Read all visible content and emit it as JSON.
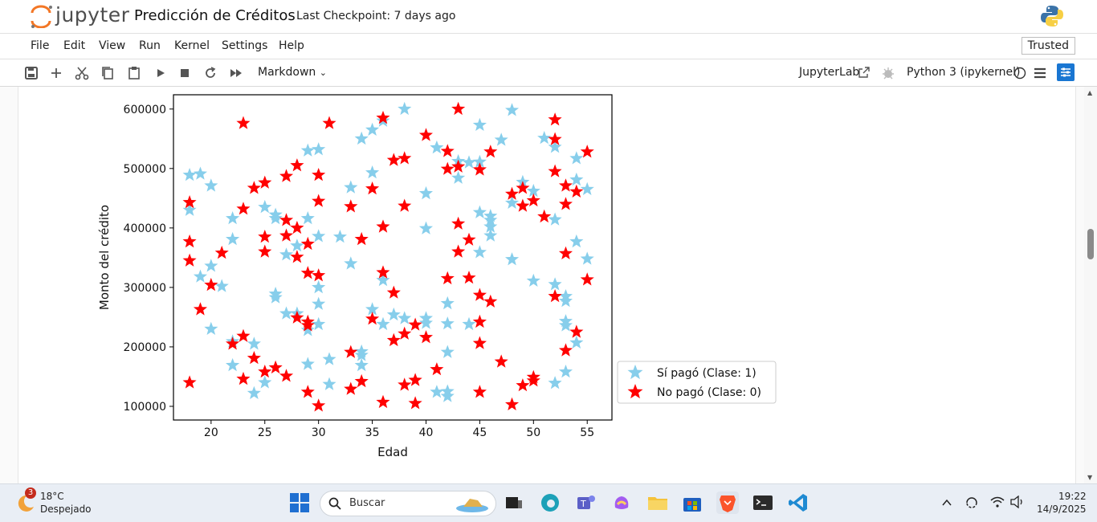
{
  "app": {
    "logo_text": "jupyter",
    "notebook_title": "Predicción de Créditos",
    "checkpoint": "Last Checkpoint: 7 days ago"
  },
  "menu": {
    "items": [
      "File",
      "Edit",
      "View",
      "Run",
      "Kernel",
      "Settings",
      "Help"
    ],
    "trusted": "Trusted"
  },
  "toolbar": {
    "cell_type": "Markdown",
    "jupyterlab_label": "JupyterLab",
    "kernel": "Python 3 (ipykernel)"
  },
  "chart_data": {
    "type": "scatter",
    "xlabel": "Edad",
    "ylabel": "Monto del crédito",
    "xlim": [
      16.5,
      57.3
    ],
    "ylim": [
      77000,
      624000
    ],
    "xticks": [
      "20",
      "25",
      "30",
      "35",
      "40",
      "45",
      "50",
      "55"
    ],
    "yticks": [
      "100000",
      "200000",
      "300000",
      "400000",
      "500000",
      "600000"
    ],
    "legend_position": "outside-right-bottom",
    "series": [
      {
        "name": "Sí pagó (Clase: 1)",
        "color": "#87ceeb",
        "points": [
          [
            18,
            489000
          ],
          [
            19,
            491000
          ],
          [
            20,
            471000
          ],
          [
            18,
            430000
          ],
          [
            22,
            416000
          ],
          [
            22,
            381000
          ],
          [
            20,
            336000
          ],
          [
            19,
            318000
          ],
          [
            21,
            302000
          ],
          [
            20,
            230000
          ],
          [
            22,
            209000
          ],
          [
            22,
            169000
          ],
          [
            24,
            205000
          ],
          [
            24,
            122000
          ],
          [
            25,
            140000
          ],
          [
            25,
            435000
          ],
          [
            26,
            422000
          ],
          [
            26,
            416000
          ],
          [
            26,
            289000
          ],
          [
            26,
            283000
          ],
          [
            27,
            256000
          ],
          [
            27,
            355000
          ],
          [
            28,
            256000
          ],
          [
            28,
            370000
          ],
          [
            29,
            416000
          ],
          [
            29,
            530000
          ],
          [
            30,
            532000
          ],
          [
            30,
            386000
          ],
          [
            30,
            300000
          ],
          [
            30,
            272000
          ],
          [
            30,
            238000
          ],
          [
            29,
            228000
          ],
          [
            29,
            171000
          ],
          [
            31,
            179000
          ],
          [
            31,
            137000
          ],
          [
            32,
            385000
          ],
          [
            33,
            468000
          ],
          [
            33,
            340000
          ],
          [
            34,
            550000
          ],
          [
            35,
            565000
          ],
          [
            35,
            493000
          ],
          [
            36,
            580000
          ],
          [
            36,
            312000
          ],
          [
            35,
            263000
          ],
          [
            36,
            238000
          ],
          [
            34,
            192000
          ],
          [
            34,
            186000
          ],
          [
            34,
            169000
          ],
          [
            37,
            254000
          ],
          [
            38,
            600000
          ],
          [
            38,
            248000
          ],
          [
            40,
            458000
          ],
          [
            40,
            399000
          ],
          [
            40,
            248000
          ],
          [
            40,
            240000
          ],
          [
            41,
            535000
          ],
          [
            41,
            124000
          ],
          [
            42,
            117000
          ],
          [
            42,
            125000
          ],
          [
            42,
            191000
          ],
          [
            42,
            273000
          ],
          [
            42,
            239000
          ],
          [
            43,
            484000
          ],
          [
            43,
            512000
          ],
          [
            44,
            510000
          ],
          [
            44,
            238000
          ],
          [
            45,
            573000
          ],
          [
            45,
            426000
          ],
          [
            45,
            359000
          ],
          [
            45,
            511000
          ],
          [
            46,
            420000
          ],
          [
            46,
            413000
          ],
          [
            46,
            402000
          ],
          [
            46,
            387000
          ],
          [
            47,
            548000
          ],
          [
            48,
            598000
          ],
          [
            48,
            347000
          ],
          [
            48,
            442000
          ],
          [
            49,
            477000
          ],
          [
            50,
            462000
          ],
          [
            50,
            311000
          ],
          [
            51,
            551000
          ],
          [
            52,
            536000
          ],
          [
            52,
            414000
          ],
          [
            52,
            305000
          ],
          [
            52,
            139000
          ],
          [
            53,
            285000
          ],
          [
            53,
            277000
          ],
          [
            53,
            243000
          ],
          [
            53,
            236000
          ],
          [
            53,
            158000
          ],
          [
            54,
            517000
          ],
          [
            54,
            481000
          ],
          [
            54,
            377000
          ],
          [
            54,
            207000
          ],
          [
            55,
            465000
          ],
          [
            55,
            348000
          ]
        ]
      },
      {
        "name": "No pagó (Clase: 0)",
        "color": "#ff0000",
        "points": [
          [
            18,
            443000
          ],
          [
            18,
            377000
          ],
          [
            18,
            345000
          ],
          [
            18,
            140000
          ],
          [
            19,
            263000
          ],
          [
            20,
            304000
          ],
          [
            21,
            358000
          ],
          [
            22,
            205000
          ],
          [
            23,
            576000
          ],
          [
            23,
            432000
          ],
          [
            23,
            218000
          ],
          [
            23,
            146000
          ],
          [
            24,
            467000
          ],
          [
            24,
            181000
          ],
          [
            25,
            476000
          ],
          [
            25,
            385000
          ],
          [
            25,
            360000
          ],
          [
            25,
            158000
          ],
          [
            26,
            165000
          ],
          [
            27,
            487000
          ],
          [
            27,
            413000
          ],
          [
            27,
            387000
          ],
          [
            27,
            151000
          ],
          [
            28,
            505000
          ],
          [
            28,
            400000
          ],
          [
            28,
            351000
          ],
          [
            28,
            249000
          ],
          [
            29,
            373000
          ],
          [
            29,
            324000
          ],
          [
            29,
            242000
          ],
          [
            29,
            236000
          ],
          [
            29,
            124000
          ],
          [
            30,
            489000
          ],
          [
            30,
            445000
          ],
          [
            30,
            320000
          ],
          [
            30,
            101000
          ],
          [
            31,
            576000
          ],
          [
            33,
            436000
          ],
          [
            33,
            191000
          ],
          [
            33,
            129000
          ],
          [
            34,
            381000
          ],
          [
            34,
            142000
          ],
          [
            35,
            466000
          ],
          [
            35,
            247000
          ],
          [
            36,
            585000
          ],
          [
            36,
            402000
          ],
          [
            36,
            325000
          ],
          [
            36,
            107000
          ],
          [
            37,
            514000
          ],
          [
            37,
            291000
          ],
          [
            37,
            211000
          ],
          [
            38,
            517000
          ],
          [
            38,
            437000
          ],
          [
            38,
            222000
          ],
          [
            38,
            136000
          ],
          [
            39,
            237000
          ],
          [
            39,
            105000
          ],
          [
            39,
            144000
          ],
          [
            40,
            556000
          ],
          [
            40,
            216000
          ],
          [
            41,
            162000
          ],
          [
            42,
            529000
          ],
          [
            42,
            499000
          ],
          [
            42,
            315000
          ],
          [
            43,
            600000
          ],
          [
            43,
            503000
          ],
          [
            43,
            407000
          ],
          [
            43,
            360000
          ],
          [
            44,
            380000
          ],
          [
            44,
            316000
          ],
          [
            45,
            498000
          ],
          [
            45,
            287000
          ],
          [
            45,
            242000
          ],
          [
            45,
            206000
          ],
          [
            45,
            124000
          ],
          [
            46,
            528000
          ],
          [
            46,
            276000
          ],
          [
            47,
            175000
          ],
          [
            48,
            457000
          ],
          [
            48,
            103000
          ],
          [
            49,
            467000
          ],
          [
            49,
            437000
          ],
          [
            49,
            135000
          ],
          [
            50,
            446000
          ],
          [
            50,
            149000
          ],
          [
            50,
            143000
          ],
          [
            51,
            419000
          ],
          [
            52,
            582000
          ],
          [
            52,
            549000
          ],
          [
            52,
            495000
          ],
          [
            52,
            285000
          ],
          [
            53,
            471000
          ],
          [
            53,
            440000
          ],
          [
            53,
            357000
          ],
          [
            53,
            194000
          ],
          [
            54,
            461000
          ],
          [
            54,
            225000
          ],
          [
            55,
            528000
          ],
          [
            55,
            313000
          ]
        ]
      }
    ]
  },
  "taskbar": {
    "badge": "3",
    "temp": "18°C",
    "weather": "Despejado",
    "search_placeholder": "Buscar",
    "time": "19:22",
    "date": "14/9/2025"
  }
}
